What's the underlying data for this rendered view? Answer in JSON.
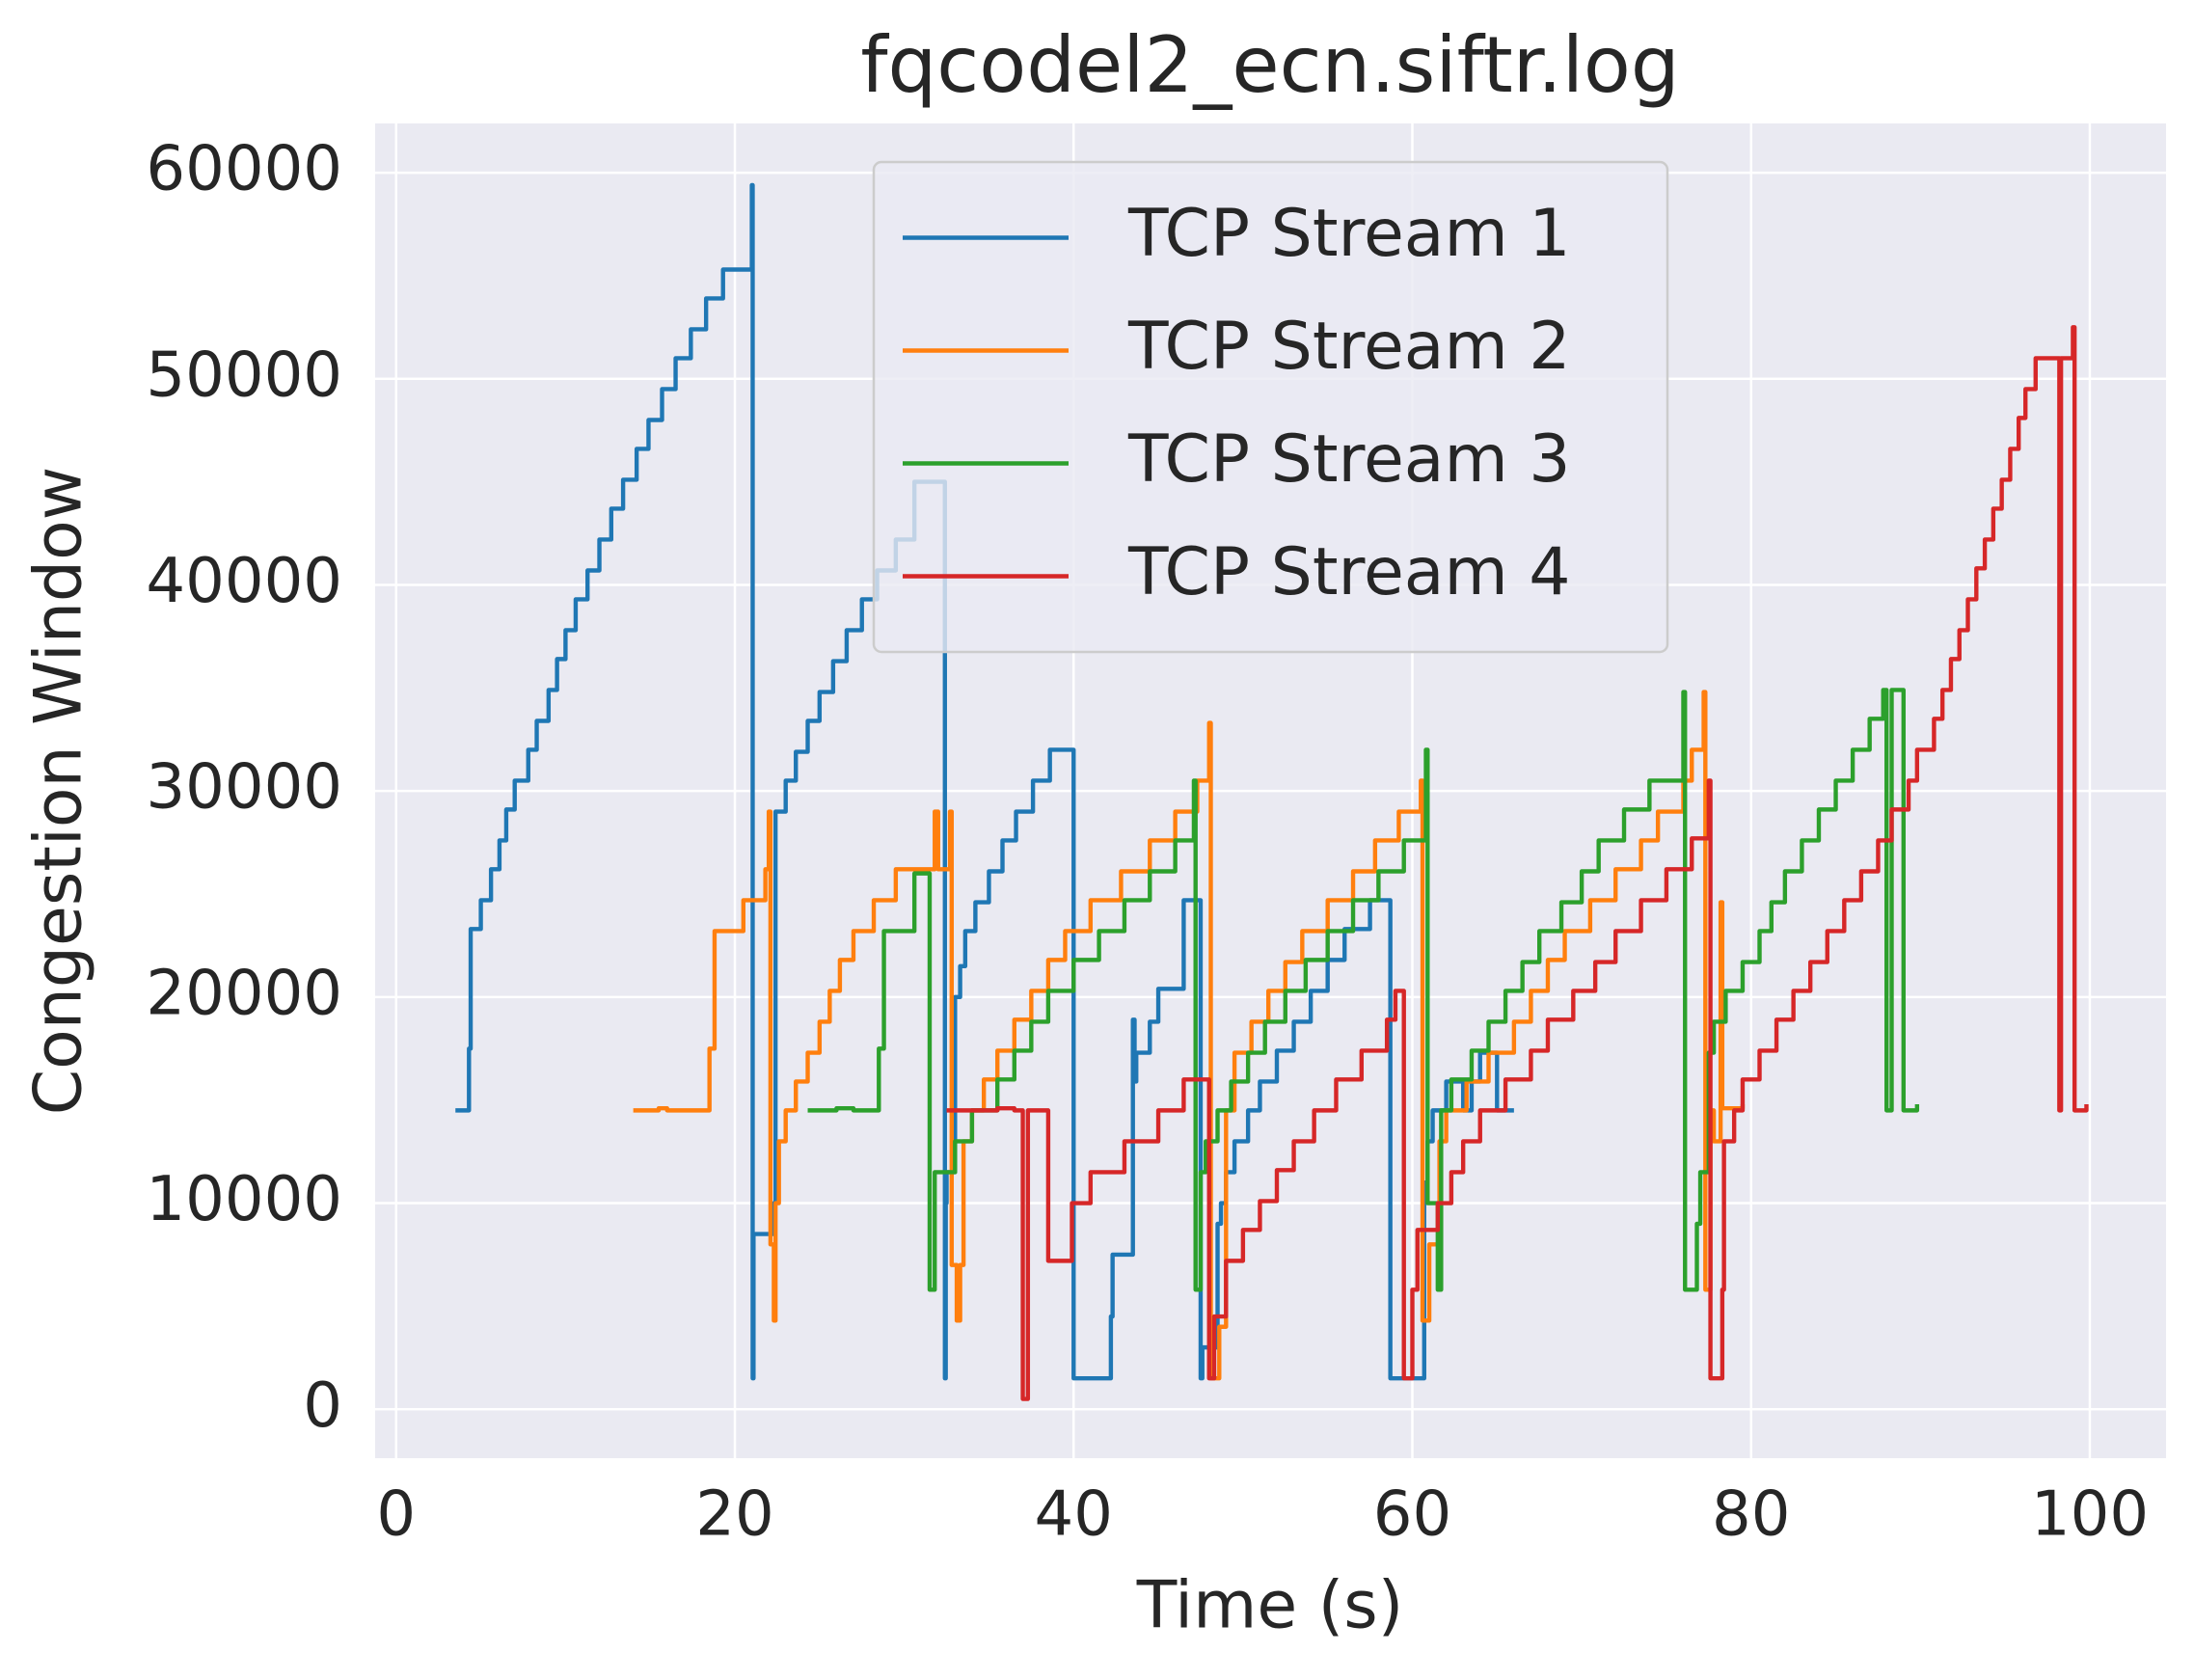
{
  "chart_data": {
    "type": "line",
    "drawstyle": "steps-post",
    "title": "fqcodel2_ecn.siftr.log",
    "x_label": "Time (s)",
    "y_label": "Congestion Window",
    "xlim": [
      -1.24,
      104.5
    ],
    "ylim": [
      -2376,
      62390
    ],
    "xticks": [
      0,
      20,
      40,
      60,
      80,
      100
    ],
    "yticks": [
      0,
      10000,
      20000,
      30000,
      40000,
      50000,
      60000
    ],
    "grid": true,
    "legend": "upper center",
    "series": [
      {
        "name": "TCP Stream 1",
        "color": "#1f77b4",
        "x": [
          3.5,
          4.3,
          4.4,
          5,
          5.6,
          6.1,
          6.5,
          7,
          7.8,
          8.3,
          9,
          9.5,
          10,
          10.6,
          11.3,
          12,
          12.7,
          13.4,
          14.2,
          14.9,
          15.7,
          16.5,
          17.4,
          18.3,
          19.3,
          21,
          21.05,
          21.1,
          22.3,
          22.4,
          23,
          23.6,
          24.3,
          25,
          25.8,
          26.6,
          27.5,
          28.4,
          29.5,
          30.6,
          32.4,
          32.45,
          32.5,
          33,
          33.3,
          33.6,
          34.2,
          35,
          35.8,
          36.6,
          37.6,
          38.6,
          40,
          42.2,
          42.3,
          43.5,
          43.6,
          43.7,
          44.5,
          45,
          46.5,
          47.5,
          47.6,
          48.5,
          48.7,
          49,
          49.5,
          50.3,
          51,
          52,
          53,
          54,
          55,
          56,
          57.5,
          58.7,
          60.7,
          60.9,
          61.2,
          62,
          63,
          63.5,
          64,
          65,
          65.1,
          66
        ],
        "values": [
          14500,
          17500,
          23300,
          24700,
          26200,
          27600,
          29100,
          30500,
          32000,
          33400,
          34900,
          36400,
          37800,
          39300,
          40700,
          42200,
          43700,
          45100,
          46600,
          48000,
          49500,
          51000,
          52400,
          53900,
          55300,
          59400,
          1500,
          8500,
          10000,
          29000,
          30500,
          31900,
          33400,
          34800,
          36300,
          37800,
          39300,
          40700,
          42200,
          45000,
          1500,
          10000,
          11500,
          20000,
          21500,
          23200,
          24600,
          26100,
          27600,
          29000,
          30500,
          32000,
          1500,
          4500,
          7500,
          18900,
          15900,
          17300,
          18800,
          20400,
          24700,
          1500,
          3000,
          9000,
          10000,
          11500,
          13000,
          14500,
          15900,
          17400,
          18800,
          20300,
          21800,
          23300,
          24700,
          1500,
          11000,
          13000,
          14500,
          15900,
          14500,
          15900,
          17300,
          14500,
          14500,
          14500
        ]
      },
      {
        "name": "TCP Stream 2",
        "color": "#ff7f0e",
        "x": [
          14,
          15.5,
          16,
          18.5,
          18.8,
          20.5,
          21.8,
          22,
          22.1,
          22.3,
          22.4,
          22.6,
          23,
          23.6,
          24.3,
          25,
          25.6,
          26.2,
          27,
          28.2,
          29.5,
          31.8,
          32,
          32.7,
          32.8,
          33.1,
          33.3,
          33.5,
          34,
          34.7,
          35.5,
          36.5,
          37.5,
          38.5,
          39.5,
          41,
          42.8,
          44.5,
          46,
          47.3,
          48,
          48.1,
          48.6,
          49,
          49.5,
          50.5,
          51.5,
          52.5,
          53.5,
          55,
          56.5,
          57.8,
          59.2,
          60.5,
          60.6,
          61,
          61.6,
          62,
          63.2,
          64.5,
          66,
          67,
          68,
          69,
          70.5,
          72,
          73.5,
          74.5,
          76,
          76.5,
          77.2,
          77.3,
          77.6,
          77.8,
          78.2,
          78.3,
          79.5
        ],
        "values": [
          14500,
          14600,
          14500,
          17500,
          23200,
          24700,
          26200,
          29000,
          8000,
          4300,
          10000,
          13000,
          14500,
          15900,
          17300,
          18800,
          20300,
          21800,
          23200,
          24700,
          26200,
          29000,
          26200,
          29000,
          7000,
          4300,
          7000,
          13000,
          14500,
          16000,
          17400,
          18900,
          20300,
          21800,
          23200,
          24700,
          26100,
          27600,
          29000,
          30500,
          33300,
          1500,
          4000,
          14500,
          17300,
          18800,
          20300,
          21700,
          23200,
          24700,
          26100,
          27600,
          29000,
          30500,
          4300,
          8000,
          13000,
          14500,
          15900,
          17300,
          18800,
          20300,
          21800,
          23200,
          24700,
          26200,
          27600,
          29000,
          30500,
          32000,
          34800,
          5800,
          14500,
          13000,
          24600,
          14600,
          14800
        ]
      },
      {
        "name": "TCP Stream 3",
        "color": "#2ca02c",
        "x": [
          24.3,
          26,
          27,
          28.5,
          28.8,
          30.6,
          31.5,
          31.8,
          33,
          34,
          35.5,
          36.5,
          37.5,
          38.5,
          40,
          41.5,
          43,
          44.5,
          46,
          47.1,
          47.2,
          47.5,
          47.8,
          48.5,
          49.3,
          50.3,
          51.3,
          52.5,
          53.7,
          55,
          56.5,
          58,
          59.5,
          60.8,
          60.9,
          61.5,
          61.7,
          62.3,
          63.5,
          64.5,
          65.5,
          66.5,
          67.5,
          68.8,
          70,
          71,
          72.5,
          74,
          76,
          76.1,
          76.8,
          77,
          77.5,
          77.8,
          78.5,
          79.5,
          80.5,
          81.2,
          82,
          83,
          84,
          85,
          86,
          87,
          87.8,
          88,
          88.3,
          89,
          89.8
        ],
        "values": [
          14500,
          14600,
          14500,
          17500,
          23200,
          26000,
          5800,
          11500,
          13000,
          14500,
          16000,
          17400,
          18800,
          20300,
          21800,
          23200,
          24700,
          26100,
          27600,
          30500,
          5800,
          11500,
          13000,
          14500,
          15900,
          17300,
          18800,
          20300,
          21800,
          23200,
          24700,
          26100,
          27600,
          32000,
          10000,
          5800,
          14500,
          16000,
          17400,
          18800,
          20300,
          21700,
          23200,
          24600,
          26100,
          27600,
          29100,
          30500,
          34800,
          5800,
          9000,
          11500,
          17300,
          18800,
          20300,
          21700,
          23200,
          24600,
          26100,
          27600,
          29100,
          30500,
          32000,
          33500,
          34900,
          14500,
          34900,
          14500,
          14800
        ]
      },
      {
        "name": "TCP Stream 4",
        "color": "#d62728",
        "x": [
          32.5,
          35.5,
          36.5,
          37,
          37.3,
          38.5,
          39.9,
          41,
          43,
          45,
          46.5,
          48,
          48.3,
          49,
          50,
          51,
          52,
          53,
          54.2,
          55.5,
          57,
          58.5,
          59,
          59.5,
          60,
          60.3,
          61.5,
          62.3,
          63,
          64,
          65.5,
          67,
          68,
          69.5,
          70.8,
          72,
          73.5,
          75,
          76.5,
          77.5,
          77.6,
          78.3,
          78.4,
          79,
          79.5,
          80.5,
          81.5,
          82.5,
          83.5,
          84.5,
          85.5,
          86.5,
          87.5,
          88.3,
          89.3,
          89.8,
          90.8,
          91.3,
          91.8,
          92.3,
          92.8,
          93.3,
          93.8,
          94.3,
          94.8,
          95.3,
          95.8,
          96.2,
          96.8,
          98.2,
          98.3,
          99,
          99.1,
          99.8
        ],
        "values": [
          14500,
          14600,
          14500,
          500,
          14500,
          7200,
          10000,
          11500,
          13000,
          14500,
          16000,
          1500,
          4500,
          7200,
          8700,
          10100,
          11600,
          13000,
          14500,
          16000,
          17400,
          18900,
          20300,
          1500,
          5800,
          8700,
          10000,
          11500,
          13000,
          14500,
          16000,
          17400,
          18900,
          20300,
          21700,
          23200,
          24700,
          26200,
          27700,
          30500,
          1500,
          5800,
          13000,
          14500,
          16000,
          17400,
          18900,
          20300,
          21700,
          23200,
          24700,
          26100,
          27600,
          29100,
          30500,
          32000,
          33500,
          34900,
          36400,
          37800,
          39300,
          40800,
          42200,
          43700,
          45100,
          46600,
          48100,
          49500,
          51000,
          14500,
          51000,
          52500,
          14500,
          14800
        ]
      }
    ]
  }
}
